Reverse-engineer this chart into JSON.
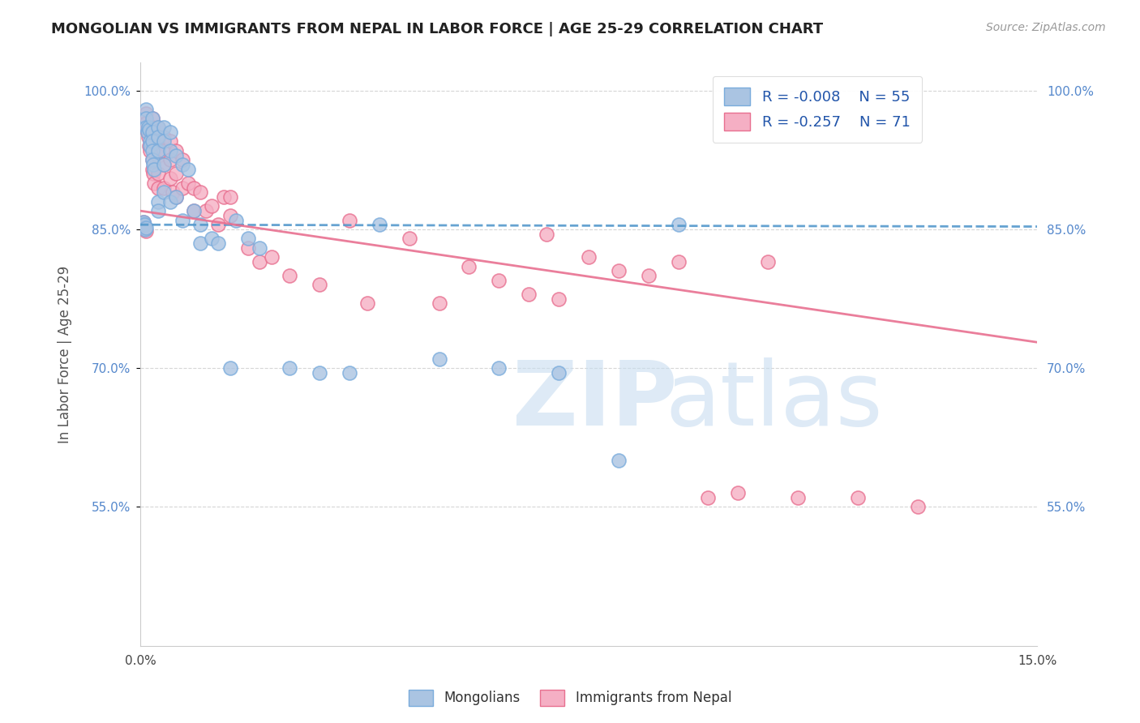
{
  "title": "MONGOLIAN VS IMMIGRANTS FROM NEPAL IN LABOR FORCE | AGE 25-29 CORRELATION CHART",
  "source": "Source: ZipAtlas.com",
  "ylabel": "In Labor Force | Age 25-29",
  "xlim": [
    0.0,
    0.15
  ],
  "ylim": [
    0.4,
    1.03
  ],
  "yticks": [
    0.55,
    0.7,
    0.85,
    1.0
  ],
  "ytick_labels": [
    "55.0%",
    "70.0%",
    "85.0%",
    "100.0%"
  ],
  "xticks": [
    0.0,
    0.05,
    0.1,
    0.15
  ],
  "xtick_labels": [
    "0.0%",
    "",
    "",
    "15.0%"
  ],
  "mongolian_color": "#aac4e2",
  "nepal_color": "#f5afc4",
  "mongolian_edge_color": "#7aacdc",
  "nepal_edge_color": "#e87090",
  "trend_mongolian_color": "#5599cc",
  "trend_nepal_color": "#e87090",
  "R_mongolian": -0.008,
  "N_mongolian": 55,
  "R_nepal": -0.257,
  "N_nepal": 71,
  "legend_mongolian": "Mongolians",
  "legend_nepal": "Immigrants from Nepal",
  "trend_m_x0": 0.0,
  "trend_m_x1": 0.15,
  "trend_m_y0": 0.855,
  "trend_m_y1": 0.853,
  "trend_n_x0": 0.0,
  "trend_n_x1": 0.15,
  "trend_n_y0": 0.87,
  "trend_n_y1": 0.728,
  "mongolian_x": [
    0.0005,
    0.0006,
    0.0007,
    0.0008,
    0.0009,
    0.001,
    0.001,
    0.001,
    0.0012,
    0.0013,
    0.0015,
    0.0016,
    0.0017,
    0.002,
    0.002,
    0.002,
    0.002,
    0.002,
    0.0022,
    0.0023,
    0.003,
    0.003,
    0.003,
    0.003,
    0.003,
    0.004,
    0.004,
    0.004,
    0.004,
    0.005,
    0.005,
    0.005,
    0.006,
    0.006,
    0.007,
    0.007,
    0.008,
    0.009,
    0.01,
    0.01,
    0.012,
    0.013,
    0.015,
    0.016,
    0.018,
    0.02,
    0.025,
    0.03,
    0.035,
    0.04,
    0.05,
    0.06,
    0.07,
    0.08,
    0.09
  ],
  "mongolian_y": [
    0.856,
    0.858,
    0.855,
    0.85,
    0.852,
    0.98,
    0.97,
    0.96,
    0.955,
    0.96,
    0.958,
    0.945,
    0.94,
    0.97,
    0.955,
    0.945,
    0.935,
    0.925,
    0.92,
    0.915,
    0.96,
    0.95,
    0.935,
    0.88,
    0.87,
    0.96,
    0.945,
    0.92,
    0.89,
    0.955,
    0.935,
    0.88,
    0.93,
    0.885,
    0.92,
    0.86,
    0.915,
    0.87,
    0.855,
    0.835,
    0.84,
    0.835,
    0.7,
    0.86,
    0.84,
    0.83,
    0.7,
    0.695,
    0.695,
    0.855,
    0.71,
    0.7,
    0.695,
    0.6,
    0.855
  ],
  "nepal_x": [
    0.0005,
    0.0006,
    0.0007,
    0.0008,
    0.0009,
    0.001,
    0.001,
    0.0011,
    0.0012,
    0.0013,
    0.0015,
    0.0016,
    0.002,
    0.002,
    0.002,
    0.002,
    0.0021,
    0.0022,
    0.0023,
    0.003,
    0.003,
    0.003,
    0.003,
    0.003,
    0.004,
    0.004,
    0.004,
    0.004,
    0.005,
    0.005,
    0.005,
    0.0055,
    0.006,
    0.006,
    0.006,
    0.007,
    0.007,
    0.008,
    0.009,
    0.009,
    0.01,
    0.011,
    0.012,
    0.013,
    0.014,
    0.015,
    0.015,
    0.018,
    0.02,
    0.022,
    0.025,
    0.03,
    0.035,
    0.038,
    0.045,
    0.05,
    0.055,
    0.06,
    0.065,
    0.068,
    0.07,
    0.075,
    0.08,
    0.085,
    0.09,
    0.095,
    0.1,
    0.105,
    0.11,
    0.12,
    0.13
  ],
  "nepal_y": [
    0.858,
    0.856,
    0.854,
    0.85,
    0.848,
    0.975,
    0.965,
    0.958,
    0.955,
    0.95,
    0.94,
    0.935,
    0.97,
    0.96,
    0.945,
    0.925,
    0.915,
    0.91,
    0.9,
    0.96,
    0.945,
    0.93,
    0.91,
    0.895,
    0.95,
    0.935,
    0.92,
    0.895,
    0.945,
    0.925,
    0.905,
    0.89,
    0.935,
    0.91,
    0.885,
    0.925,
    0.895,
    0.9,
    0.895,
    0.87,
    0.89,
    0.87,
    0.875,
    0.855,
    0.885,
    0.885,
    0.865,
    0.83,
    0.815,
    0.82,
    0.8,
    0.79,
    0.86,
    0.77,
    0.84,
    0.77,
    0.81,
    0.795,
    0.78,
    0.845,
    0.775,
    0.82,
    0.805,
    0.8,
    0.815,
    0.56,
    0.565,
    0.815,
    0.56,
    0.56,
    0.55
  ]
}
